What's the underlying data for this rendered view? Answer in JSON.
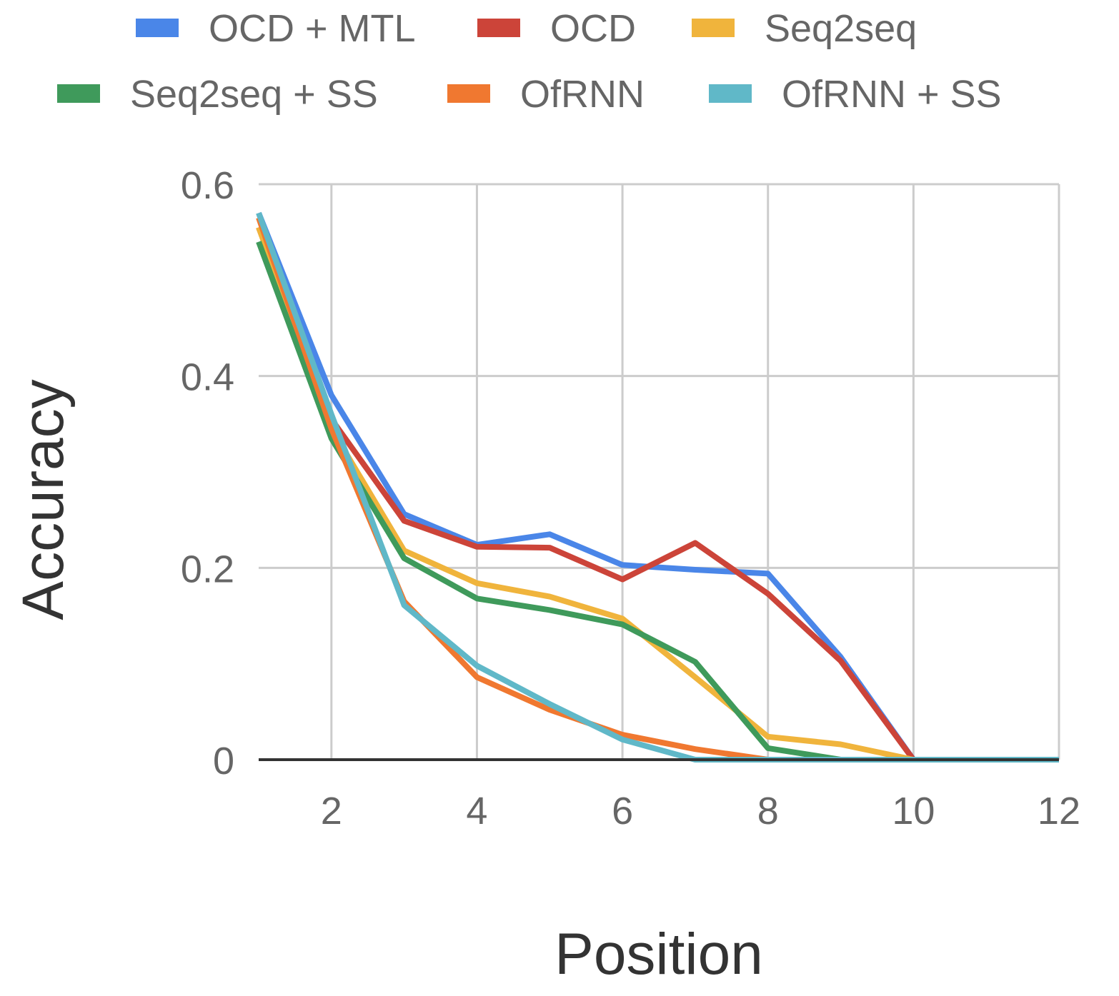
{
  "chart_data": {
    "type": "line",
    "title": "",
    "xlabel": "Position",
    "ylabel": "Accuracy",
    "xlim": [
      1,
      12
    ],
    "ylim": [
      0,
      0.6
    ],
    "xticks": [
      2,
      4,
      6,
      8,
      10,
      12
    ],
    "xtick_labels": [
      "2",
      "4",
      "6",
      "8",
      "10",
      "12"
    ],
    "yticks": [
      0,
      0.2,
      0.4,
      0.6
    ],
    "ytick_labels": [
      "0",
      "0.2",
      "0.4",
      "0.6"
    ],
    "grid": true,
    "legend_position": "top",
    "x": [
      1,
      2,
      3,
      4,
      5,
      6,
      7,
      8,
      9,
      10,
      11,
      12
    ],
    "series": [
      {
        "name": "OCD + MTL",
        "color": "#4a86e8",
        "values": [
          0.57,
          0.38,
          0.256,
          0.224,
          0.235,
          0.203,
          0.198,
          0.194,
          0.107,
          0,
          0,
          0
        ]
      },
      {
        "name": "OCD",
        "color": "#cc4439",
        "values": [
          0.555,
          0.355,
          0.249,
          0.222,
          0.221,
          0.188,
          0.226,
          0.173,
          0.103,
          0,
          0,
          0
        ]
      },
      {
        "name": "Seq2seq",
        "color": "#f0b43c",
        "values": [
          0.555,
          0.345,
          0.218,
          0.184,
          0.17,
          0.147,
          0.086,
          0.024,
          0.016,
          0,
          0,
          0
        ]
      },
      {
        "name": "Seq2seq + SS",
        "color": "#3f9a5b",
        "values": [
          0.54,
          0.335,
          0.21,
          0.168,
          0.156,
          0.141,
          0.102,
          0.012,
          0,
          0,
          0,
          0
        ]
      },
      {
        "name": "OfRNN",
        "color": "#f07830",
        "values": [
          0.565,
          0.345,
          0.165,
          0.086,
          0.052,
          0.026,
          0.011,
          0,
          0,
          0,
          0,
          0
        ]
      },
      {
        "name": "OfRNN + SS",
        "color": "#60b8c8",
        "values": [
          0.57,
          0.36,
          0.161,
          0.098,
          0.058,
          0.021,
          0,
          0,
          0,
          0,
          0,
          0
        ]
      }
    ]
  }
}
